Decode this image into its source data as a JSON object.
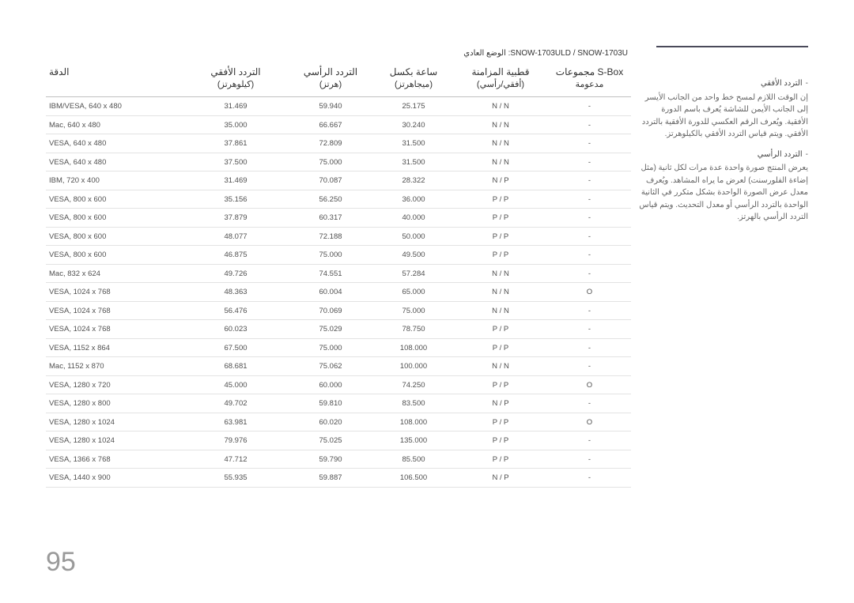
{
  "page_number": "95",
  "pre_header": "SNOW-1703ULD / SNOW-1703U: الوضع العادي",
  "sidebar": {
    "items": [
      {
        "title": "التردد الأفقي",
        "body": "إن الوقت اللازم لمسح خط واحد من الجانب الأيسر إلى الجانب الأيمن للشاشة يُعرف باسم الدورة الأفقية. ويُعرف الرقم العكسي للدورة الأفقية بالتردد الأفقي. ويتم قياس التردد الأفقي بالكيلوهرتز."
      },
      {
        "title": "التردد الرأسي",
        "body": "يعرض المنتج صورة واحدة عدة مرات لكل ثانية (مثل إضاءة الفلورسنت) لعرض ما يراه المشاهد. ويُعرف معدل عرض الصورة الواحدة بشكل متكرر في الثانية الواحدة بالتردد الرأسي أو معدل التحديث. ويتم قياس التردد الرأسي بالهرتز."
      }
    ]
  },
  "headers": {
    "col0": {
      "line1": "الدقة",
      "line2": ""
    },
    "col1": {
      "line1": "التردد الأفقي",
      "line2": "(كيلوهرتز)"
    },
    "col2": {
      "line1": "التردد الرأسي",
      "line2": "(هرتز)"
    },
    "col3": {
      "line1": "ساعة بكسل",
      "line2": "(ميجاهرتز)"
    },
    "col4": {
      "line1": "قطبية المزامنة",
      "line2": "(أفقي/رأسي)"
    },
    "col5": {
      "line1": "مجموعات S-Box",
      "line2": "مدعومة"
    }
  },
  "rows": [
    [
      "IBM/VESA, 640 x 480",
      "31.469",
      "59.940",
      "25.175",
      "N / N",
      "-"
    ],
    [
      "Mac, 640 x 480",
      "35.000",
      "66.667",
      "30.240",
      "N / N",
      "-"
    ],
    [
      "VESA, 640 x 480",
      "37.861",
      "72.809",
      "31.500",
      "N / N",
      "-"
    ],
    [
      "VESA, 640 x 480",
      "37.500",
      "75.000",
      "31.500",
      "N / N",
      "-"
    ],
    [
      "IBM, 720 x 400",
      "31.469",
      "70.087",
      "28.322",
      "N / P",
      "-"
    ],
    [
      "VESA, 800 x 600",
      "35.156",
      "56.250",
      "36.000",
      "P / P",
      "-"
    ],
    [
      "VESA, 800 x 600",
      "37.879",
      "60.317",
      "40.000",
      "P / P",
      "-"
    ],
    [
      "VESA, 800 x 600",
      "48.077",
      "72.188",
      "50.000",
      "P / P",
      "-"
    ],
    [
      "VESA, 800 x 600",
      "46.875",
      "75.000",
      "49.500",
      "P / P",
      "-"
    ],
    [
      "Mac, 832 x 624",
      "49.726",
      "74.551",
      "57.284",
      "N / N",
      "-"
    ],
    [
      "VESA, 1024 x 768",
      "48.363",
      "60.004",
      "65.000",
      "N / N",
      "O"
    ],
    [
      "VESA, 1024 x 768",
      "56.476",
      "70.069",
      "75.000",
      "N / N",
      "-"
    ],
    [
      "VESA, 1024 x 768",
      "60.023",
      "75.029",
      "78.750",
      "P / P",
      "-"
    ],
    [
      "VESA, 1152 x 864",
      "67.500",
      "75.000",
      "108.000",
      "P / P",
      "-"
    ],
    [
      "Mac, 1152 x 870",
      "68.681",
      "75.062",
      "100.000",
      "N / N",
      "-"
    ],
    [
      "VESA, 1280 x 720",
      "45.000",
      "60.000",
      "74.250",
      "P / P",
      "O"
    ],
    [
      "VESA, 1280 x 800",
      "49.702",
      "59.810",
      "83.500",
      "N / P",
      "-"
    ],
    [
      "VESA, 1280 x 1024",
      "63.981",
      "60.020",
      "108.000",
      "P / P",
      "O"
    ],
    [
      "VESA, 1280 x 1024",
      "79.976",
      "75.025",
      "135.000",
      "P / P",
      "-"
    ],
    [
      "VESA, 1366 x 768",
      "47.712",
      "59.790",
      "85.500",
      "P / P",
      "-"
    ],
    [
      "VESA, 1440 x 900",
      "55.935",
      "59.887",
      "106.500",
      "N / P",
      "-"
    ]
  ]
}
